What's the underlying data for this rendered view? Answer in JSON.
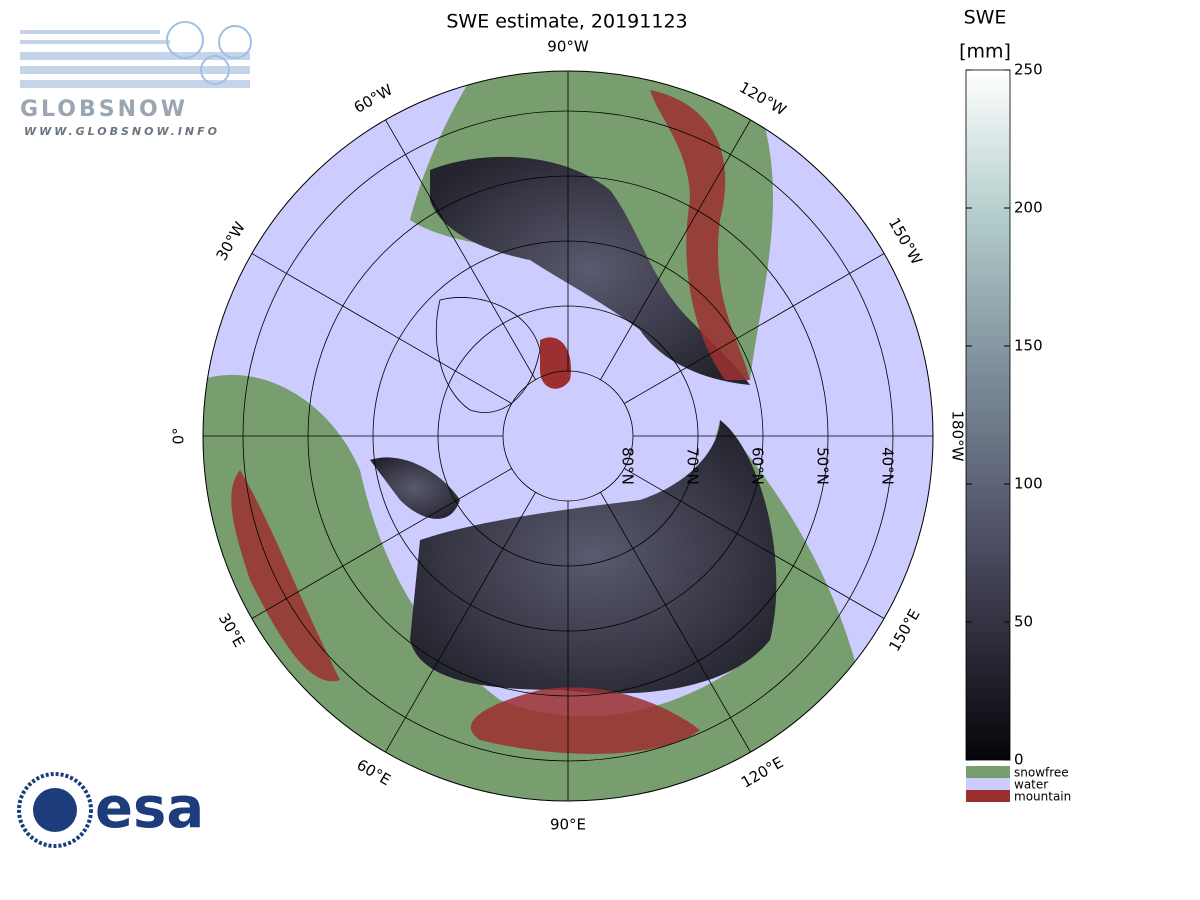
{
  "title": "SWE estimate, 20191123",
  "colorbar": {
    "title": "SWE",
    "unit": "[mm]",
    "lim": [
      0,
      250
    ],
    "ticks": [
      0,
      50,
      100,
      150,
      200,
      250
    ]
  },
  "legend": [
    {
      "name": "snowfree",
      "color": "#789d6e"
    },
    {
      "name": "water",
      "color": "#ccccff"
    },
    {
      "name": "mountain",
      "color": "#9c3030"
    }
  ],
  "meridians": [
    {
      "lon": 0,
      "label": "0°"
    },
    {
      "lon": -30,
      "label": "30°W"
    },
    {
      "lon": -60,
      "label": "60°W"
    },
    {
      "lon": -90,
      "label": "90°W"
    },
    {
      "lon": -120,
      "label": "120°W"
    },
    {
      "lon": -150,
      "label": "150°W"
    },
    {
      "lon": 180,
      "label": "180°W"
    },
    {
      "lon": 150,
      "label": "150°E"
    },
    {
      "lon": 120,
      "label": "120°E"
    },
    {
      "lon": 90,
      "label": "90°E"
    },
    {
      "lon": 60,
      "label": "60°E"
    },
    {
      "lon": 30,
      "label": "30°E"
    }
  ],
  "parallels": [
    {
      "lat": 80,
      "label": "80°N"
    },
    {
      "lat": 70,
      "label": "70°N"
    },
    {
      "lat": 60,
      "label": "60°N"
    },
    {
      "lat": 50,
      "label": "50°N"
    },
    {
      "lat": 40,
      "label": "40°N"
    }
  ],
  "logos": {
    "globsnow": "GLOBSNOW",
    "globsnow_url": "WWW.GLOBSNOW.INFO",
    "esa": "esa"
  }
}
